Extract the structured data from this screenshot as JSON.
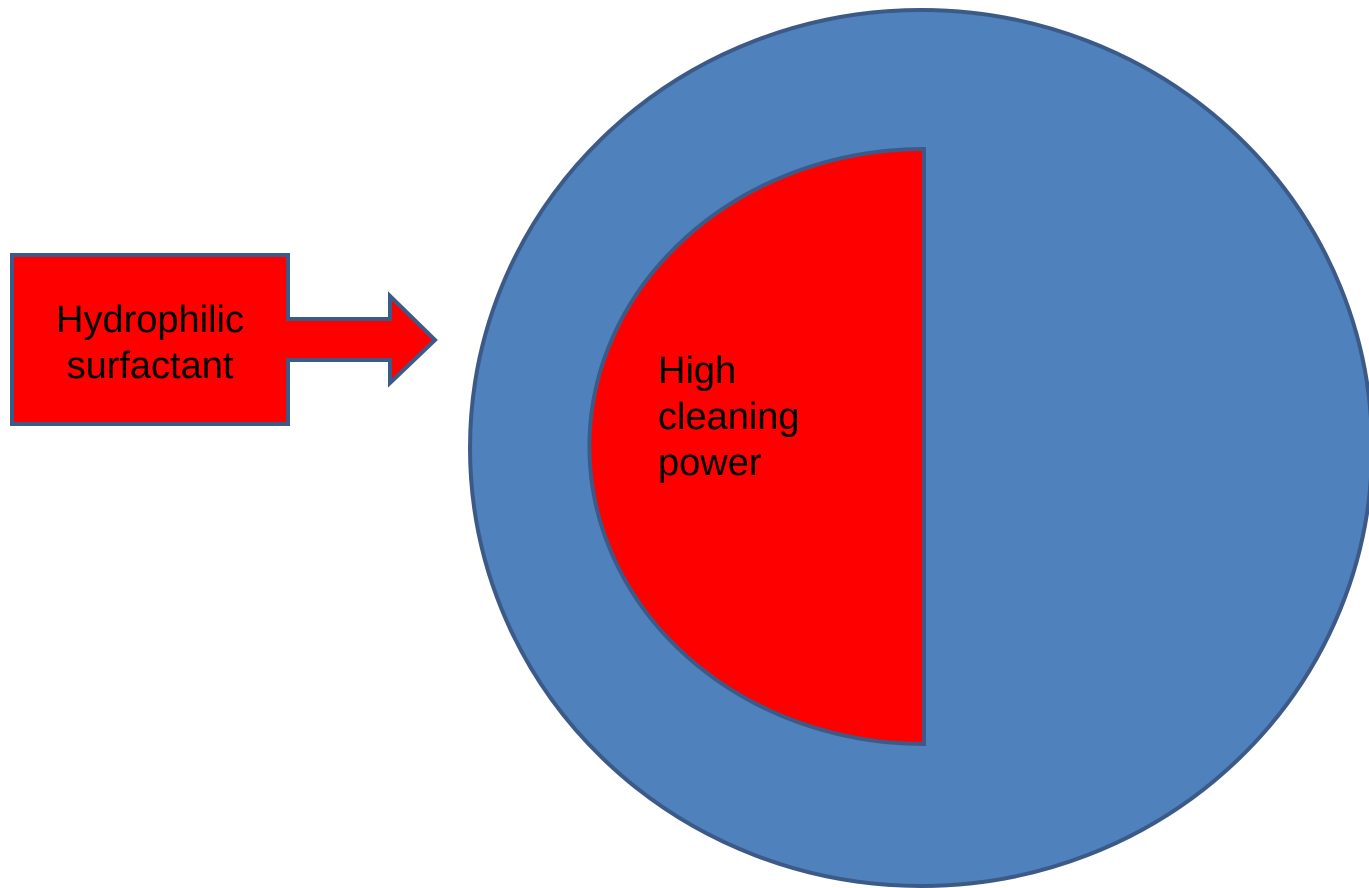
{
  "callout": {
    "line1": "Hydrophilic",
    "line2": "surfactant",
    "fill_color": "#ff0000",
    "stroke_color": "#3c5a87"
  },
  "core": {
    "line1": "High",
    "line2": "cleaning",
    "line3": "power",
    "fill_color": "#ff0000",
    "stroke_color": "#3c5a87"
  },
  "outer_circle": {
    "fill_color": "#4f81bd",
    "stroke_color": "#3c5a87"
  }
}
